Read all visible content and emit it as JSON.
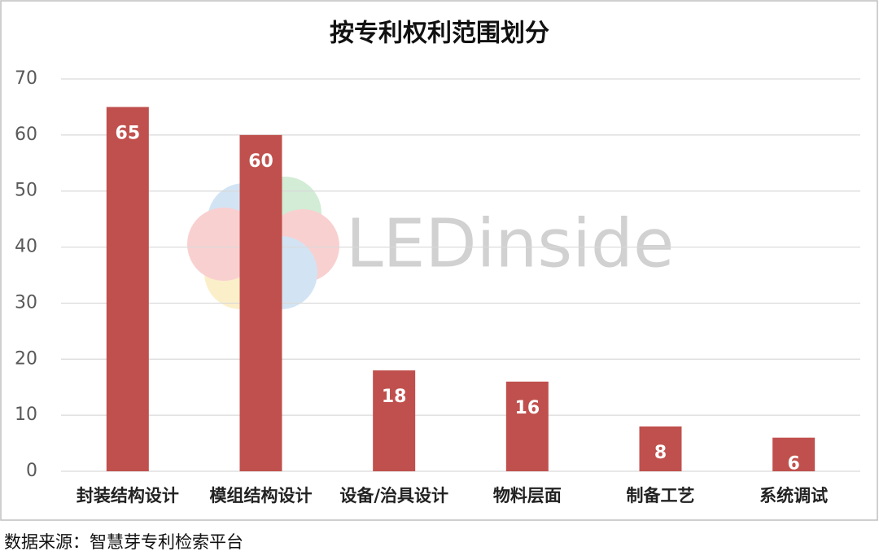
{
  "chart_data": {
    "type": "bar",
    "title": "按专利权利范围划分",
    "categories": [
      "封装结构设计",
      "模组结构设计",
      "设备/治具设计",
      "物料层面",
      "制备工艺",
      "系统调试"
    ],
    "values": [
      65,
      60,
      18,
      16,
      8,
      6
    ],
    "color": "#c0504d",
    "ylim": [
      0,
      70
    ],
    "yticks": [
      0,
      10,
      20,
      30,
      40,
      50,
      60,
      70
    ],
    "grid": true,
    "watermark": "LEDinside",
    "source": "数据来源：智慧芽专利检索平台"
  }
}
